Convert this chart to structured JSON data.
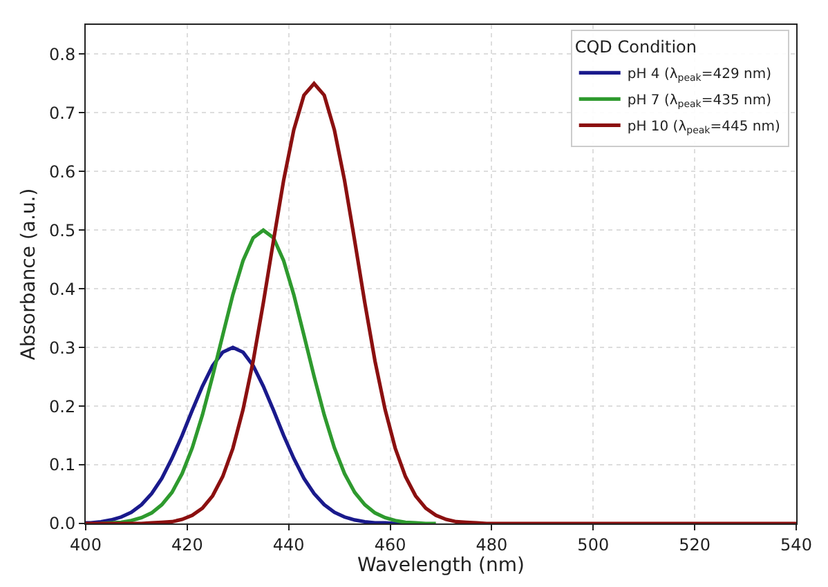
{
  "chart_data": {
    "type": "line",
    "xlabel": "Wavelength (nm)",
    "ylabel": "Absorbance (a.u.)",
    "legend_title": "CQD Condition",
    "legend": "top right",
    "grid": true,
    "xlim": [
      400,
      540
    ],
    "xticks": [
      400,
      420,
      440,
      460,
      480,
      500,
      520,
      540
    ],
    "ylim": [
      0,
      0.85
    ],
    "yticks": [
      {
        "value": 0,
        "label": "0.0"
      },
      0.1,
      0.2,
      0.3,
      0.4,
      0.5,
      0.6,
      0.7,
      0.8
    ],
    "x": [
      400,
      401,
      403,
      405,
      407,
      409,
      411,
      413,
      415,
      417,
      419,
      421,
      423,
      425,
      427,
      429,
      431,
      433,
      435,
      437,
      439,
      441,
      443,
      445,
      447,
      449,
      451,
      453,
      455,
      457,
      459,
      461,
      463,
      465,
      467,
      469,
      471,
      473,
      475,
      477,
      479,
      481,
      500,
      520,
      540
    ],
    "series": [
      {
        "name": "pH 4 (λ$_{peak}$=429 nm)",
        "color": "#1a1a8c",
        "values": [
          0.001,
          0.001,
          0.003,
          0.006,
          0.011,
          0.019,
          0.032,
          0.051,
          0.077,
          0.111,
          0.15,
          0.193,
          0.234,
          0.269,
          0.292,
          0.3,
          0.292,
          0.269,
          0.234,
          0.193,
          0.15,
          0.111,
          0.077,
          0.051,
          0.032,
          0.019,
          0.011,
          0.006,
          0.003,
          0.001,
          0.001,
          0,
          0,
          0,
          null,
          null,
          null,
          null,
          null,
          null,
          null,
          null,
          null,
          null,
          null
        ]
      },
      {
        "name": "pH 7 (λ$_{peak}$=435 nm)",
        "color": "#2e9a2e",
        "values": [
          null,
          null,
          0,
          0.001,
          0.002,
          0.005,
          0.01,
          0.018,
          0.032,
          0.053,
          0.085,
          0.129,
          0.185,
          0.251,
          0.321,
          0.39,
          0.448,
          0.487,
          0.5,
          0.487,
          0.448,
          0.39,
          0.321,
          0.251,
          0.185,
          0.129,
          0.085,
          0.053,
          0.032,
          0.018,
          0.01,
          0.005,
          0.002,
          0.001,
          0,
          0,
          null,
          null,
          null,
          null,
          null,
          null,
          null,
          null,
          null
        ]
      },
      {
        "name": "pH 10 (λ$_{peak}$=445 nm)",
        "color": "#8b1010",
        "values": [
          0,
          0,
          0,
          0,
          0,
          0,
          0,
          0.001,
          0.002,
          0.003,
          0.007,
          0.014,
          0.026,
          0.047,
          0.08,
          0.128,
          0.194,
          0.277,
          0.376,
          0.482,
          0.585,
          0.671,
          0.73,
          0.75,
          0.73,
          0.671,
          0.585,
          0.482,
          0.376,
          0.277,
          0.194,
          0.128,
          0.08,
          0.047,
          0.026,
          0.014,
          0.007,
          0.003,
          0.002,
          0.001,
          0,
          0,
          0,
          0,
          0
        ]
      }
    ]
  }
}
